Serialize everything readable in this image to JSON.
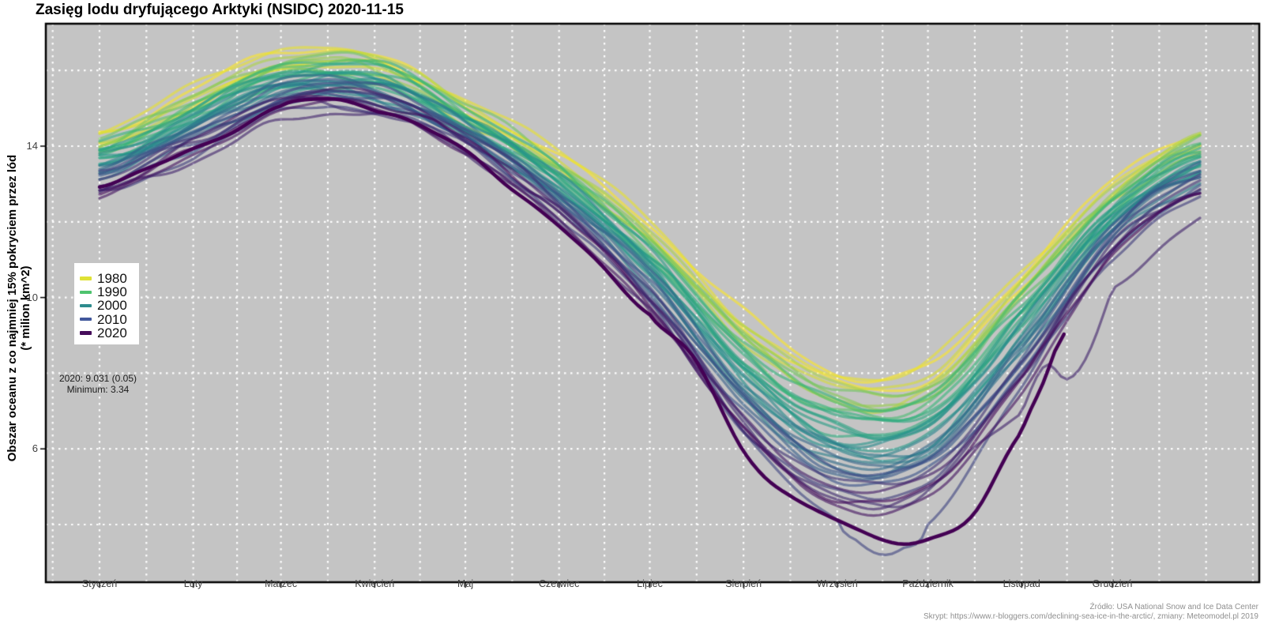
{
  "chart_data": {
    "type": "line",
    "title": "Zasięg lodu dryfującego Arktyki (NSIDC) 2020-11-15",
    "ylabel_line1": "Obszar oceanu z co najmniej 15% pokryciem przez lód",
    "ylabel_line2": "(* milion km^2)",
    "x_tick_labels": [
      "Styczeń",
      "Luty",
      "Marzec",
      "Kwiecień",
      "Maj",
      "Czerwiec",
      "Lipiec",
      "Sierpień",
      "Wrzesień",
      "Październik",
      "Listopad",
      "Grudzień"
    ],
    "month_start_days": [
      1,
      32,
      61,
      92,
      122,
      153,
      183,
      214,
      245,
      275,
      306,
      336
    ],
    "x_domain_days": [
      1,
      366
    ],
    "y_major_ticks": [
      14,
      10,
      6
    ],
    "y_minor_ticks": [
      16,
      12,
      8,
      4
    ],
    "ylim": [
      2.5,
      17.2
    ],
    "panel_bg": "#c4c4c4",
    "grid_color": "#ffffff",
    "axis_text_color": "#404040",
    "line_alpha": 0.6,
    "line_width": 3.2,
    "highlight_line_width": 4.5,
    "viridis_stops": [
      "#440154",
      "#3b528b",
      "#21918c",
      "#35b779",
      "#fde725"
    ],
    "legend": {
      "entries": [
        {
          "label": "1980",
          "color": "#dfe236"
        },
        {
          "label": "1990",
          "color": "#4ec36e"
        },
        {
          "label": "2000",
          "color": "#2d8b8d"
        },
        {
          "label": "2010",
          "color": "#41589c"
        },
        {
          "label": "2020",
          "color": "#460d5b"
        }
      ]
    },
    "annotation": {
      "line1": "2020: 9.031 (0.05)",
      "line2": "Minimum: 3.34"
    },
    "footer": {
      "line1": "Źródło: USA National Snow and Ice Data Center",
      "line2": "Skrypt: https://www.r-bloggers.com/declining-sea-ice-in-the-arctic/, zmiany: Meteomodel.pl 2019"
    },
    "years": {
      "first": 1979,
      "last": 2020
    },
    "month_anchor_days": [
      1,
      32,
      61,
      92,
      122,
      153,
      183,
      214,
      245,
      275,
      306,
      336,
      366
    ],
    "envelope_first_year": [
      14.35,
      15.35,
      16.3,
      16.25,
      15.1,
      13.7,
      11.8,
      9.4,
      7.9,
      8.15,
      10.6,
      12.9,
      14.25
    ],
    "envelope_last_year": [
      12.7,
      13.9,
      15.0,
      14.95,
      13.9,
      12.1,
      9.8,
      6.4,
      4.45,
      4.7,
      7.6,
      11.1,
      12.75
    ],
    "year_offsets_cycle": [
      0.1,
      -0.18,
      0.22,
      -0.02,
      -0.25,
      0.15,
      -0.08,
      0.05,
      0.18,
      -0.12
    ],
    "special_years": {
      "2012": {
        "monthly": [
          13.35,
          14.2,
          15.25,
          15.2,
          14.2,
          12.45,
          10.15,
          6.4,
          3.95,
          4.1,
          7.8,
          11.45,
          13.2
        ],
        "extra_days": [
          252,
          259,
          266
        ],
        "extra_values": [
          3.5,
          3.34,
          3.5
        ]
      },
      "2016": {
        "monthly": [
          12.9,
          13.75,
          14.7,
          14.75,
          13.7,
          11.9,
          9.8,
          6.7,
          4.55,
          4.85,
          6.9,
          10.2,
          12.35
        ],
        "extra_days": [
          314,
          321,
          328
        ],
        "extra_values": [
          8.2,
          7.85,
          8.45
        ]
      }
    },
    "highlight_year": {
      "year": 2020,
      "color": "#440154",
      "days": [
        1,
        32,
        61,
        75,
        92,
        122,
        153,
        183,
        198,
        214,
        230,
        245,
        260,
        275,
        290,
        306,
        313,
        320
      ],
      "values": [
        13.05,
        14.0,
        15.0,
        15.1,
        14.9,
        13.85,
        12.0,
        9.6,
        8.3,
        5.75,
        4.7,
        4.15,
        3.6,
        3.75,
        4.4,
        6.4,
        7.7,
        9.031
      ],
      "end_day": 320,
      "end_value": 9.031
    }
  }
}
